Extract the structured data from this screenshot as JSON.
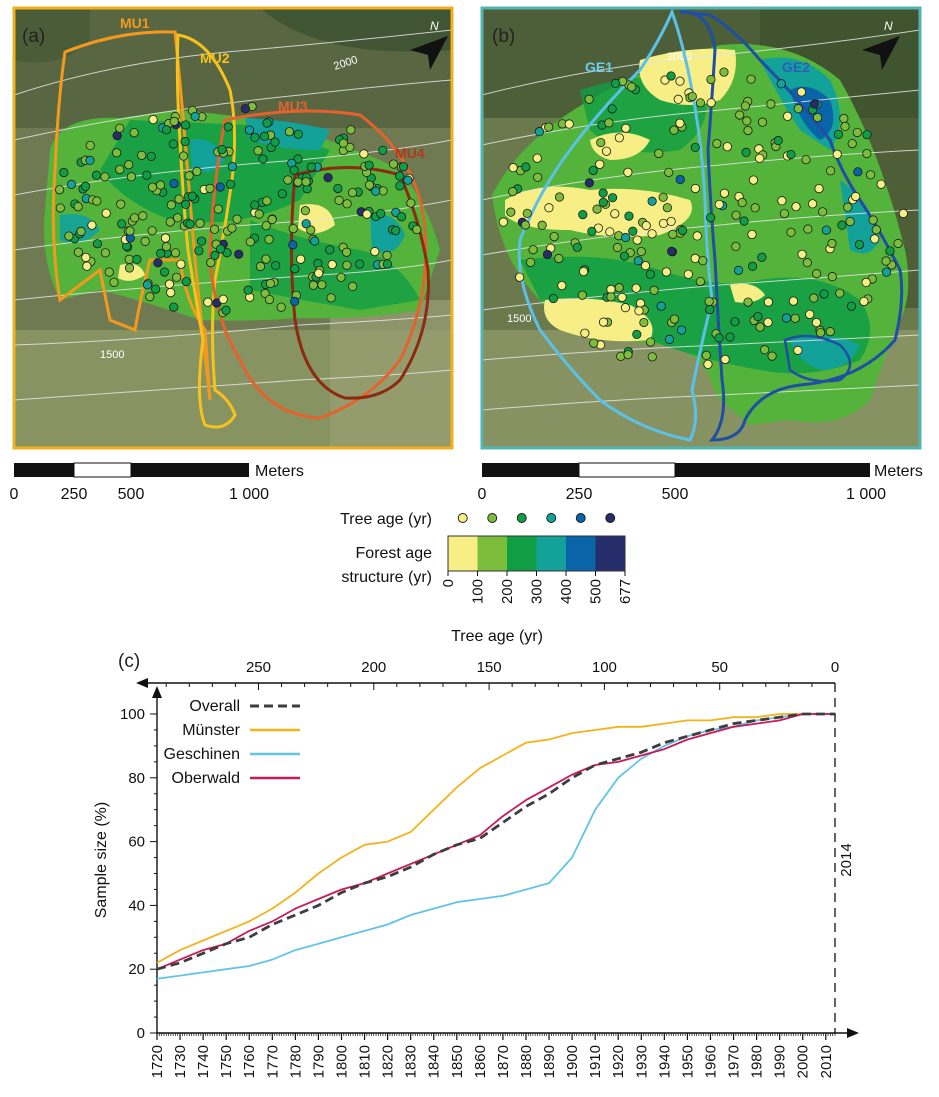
{
  "panels": {
    "a": {
      "label": "(a)",
      "units": [
        "MU1",
        "MU2",
        "MU3",
        "MU4"
      ],
      "unit_colors": [
        "#f39a1e",
        "#f7c21b",
        "#e4622d",
        "#8c2a12"
      ],
      "contours": [
        "2000",
        "1500"
      ],
      "frame_color": "#f2b01f"
    },
    "b": {
      "label": "(b)",
      "units": [
        "GE1",
        "GE2"
      ],
      "unit_colors": [
        "#5cc1e8",
        "#1f4fa3"
      ],
      "contours": [
        "2000",
        "1500"
      ],
      "frame_color": "#4fb6b4"
    }
  },
  "scale_bar": {
    "unit": "Meters",
    "ticks": [
      "0",
      "250",
      "500",
      "1 000"
    ]
  },
  "age_legend": {
    "tree_age_label": "Tree age (yr)",
    "structure_label_1": "Forest age",
    "structure_label_2": "structure (yr)",
    "bin_ticks": [
      "0",
      "100",
      "200",
      "300",
      "400",
      "500",
      "677"
    ],
    "bin_colors": [
      "#f7ee85",
      "#7cbd3b",
      "#109e45",
      "#12a29a",
      "#0a64a8",
      "#252d6b"
    ]
  },
  "chart_data": {
    "type": "line",
    "panel_label": "(c)",
    "xlabel_top": "Tree age (yr)",
    "ylabel": "Sample size (%)",
    "x_range": [
      1720,
      2014
    ],
    "ylim": [
      0,
      100
    ],
    "x_ticks": [
      "1720",
      "1730",
      "1740",
      "1750",
      "1760",
      "1770",
      "1780",
      "1790",
      "1800",
      "1810",
      "1820",
      "1830",
      "1840",
      "1850",
      "1860",
      "1870",
      "1880",
      "1890",
      "1900",
      "1910",
      "1920",
      "1930",
      "1940",
      "1950",
      "1960",
      "1970",
      "1980",
      "1990",
      "2000",
      "2010"
    ],
    "top_ticks": [
      "250",
      "200",
      "150",
      "100",
      "50",
      "0"
    ],
    "y_ticks": [
      "0",
      "20",
      "40",
      "60",
      "80",
      "100"
    ],
    "reference_line": {
      "x": 2014,
      "label": "2014"
    },
    "legend_placement": "top-left",
    "series": [
      {
        "name": "Overall",
        "color": "#3d3d3d",
        "dashed": true,
        "points": [
          [
            1720,
            20
          ],
          [
            1730,
            22
          ],
          [
            1740,
            25
          ],
          [
            1750,
            28
          ],
          [
            1760,
            30
          ],
          [
            1770,
            34
          ],
          [
            1780,
            37
          ],
          [
            1790,
            40
          ],
          [
            1800,
            44
          ],
          [
            1810,
            47
          ],
          [
            1820,
            49
          ],
          [
            1830,
            52
          ],
          [
            1840,
            56
          ],
          [
            1850,
            59
          ],
          [
            1860,
            61
          ],
          [
            1870,
            66
          ],
          [
            1880,
            71
          ],
          [
            1890,
            75
          ],
          [
            1900,
            80
          ],
          [
            1910,
            84
          ],
          [
            1920,
            86
          ],
          [
            1930,
            88
          ],
          [
            1940,
            91
          ],
          [
            1950,
            93
          ],
          [
            1960,
            95
          ],
          [
            1970,
            97
          ],
          [
            1980,
            98
          ],
          [
            1990,
            99
          ],
          [
            2000,
            100
          ],
          [
            2014,
            100
          ]
        ]
      },
      {
        "name": "Münster",
        "color": "#f4b31b",
        "dashed": false,
        "points": [
          [
            1720,
            22
          ],
          [
            1730,
            26
          ],
          [
            1740,
            29
          ],
          [
            1750,
            32
          ],
          [
            1760,
            35
          ],
          [
            1770,
            39
          ],
          [
            1780,
            44
          ],
          [
            1790,
            50
          ],
          [
            1800,
            55
          ],
          [
            1810,
            59
          ],
          [
            1820,
            60
          ],
          [
            1830,
            63
          ],
          [
            1840,
            70
          ],
          [
            1850,
            77
          ],
          [
            1860,
            83
          ],
          [
            1870,
            87
          ],
          [
            1880,
            91
          ],
          [
            1890,
            92
          ],
          [
            1900,
            94
          ],
          [
            1910,
            95
          ],
          [
            1920,
            96
          ],
          [
            1930,
            96
          ],
          [
            1940,
            97
          ],
          [
            1950,
            98
          ],
          [
            1960,
            98
          ],
          [
            1970,
            99
          ],
          [
            1980,
            99
          ],
          [
            1990,
            100
          ],
          [
            2000,
            100
          ],
          [
            2014,
            100
          ]
        ]
      },
      {
        "name": "Geschinen",
        "color": "#62c4e6",
        "dashed": false,
        "points": [
          [
            1720,
            17
          ],
          [
            1730,
            18
          ],
          [
            1740,
            19
          ],
          [
            1750,
            20
          ],
          [
            1760,
            21
          ],
          [
            1770,
            23
          ],
          [
            1780,
            26
          ],
          [
            1790,
            28
          ],
          [
            1800,
            30
          ],
          [
            1810,
            32
          ],
          [
            1820,
            34
          ],
          [
            1830,
            37
          ],
          [
            1840,
            39
          ],
          [
            1850,
            41
          ],
          [
            1860,
            42
          ],
          [
            1870,
            43
          ],
          [
            1880,
            45
          ],
          [
            1890,
            47
          ],
          [
            1900,
            55
          ],
          [
            1910,
            70
          ],
          [
            1920,
            80
          ],
          [
            1930,
            86
          ],
          [
            1940,
            90
          ],
          [
            1950,
            93
          ],
          [
            1960,
            95
          ],
          [
            1970,
            96
          ],
          [
            1980,
            98
          ],
          [
            1990,
            99
          ],
          [
            2000,
            100
          ],
          [
            2014,
            100
          ]
        ]
      },
      {
        "name": "Oberwald",
        "color": "#c8195a",
        "dashed": false,
        "points": [
          [
            1720,
            20
          ],
          [
            1730,
            23
          ],
          [
            1740,
            26
          ],
          [
            1750,
            28
          ],
          [
            1760,
            32
          ],
          [
            1770,
            35
          ],
          [
            1780,
            39
          ],
          [
            1790,
            42
          ],
          [
            1800,
            45
          ],
          [
            1810,
            47
          ],
          [
            1820,
            50
          ],
          [
            1830,
            53
          ],
          [
            1840,
            56
          ],
          [
            1850,
            59
          ],
          [
            1860,
            62
          ],
          [
            1870,
            68
          ],
          [
            1880,
            73
          ],
          [
            1890,
            77
          ],
          [
            1900,
            81
          ],
          [
            1910,
            84
          ],
          [
            1920,
            85
          ],
          [
            1930,
            87
          ],
          [
            1940,
            89
          ],
          [
            1950,
            92
          ],
          [
            1960,
            94
          ],
          [
            1970,
            96
          ],
          [
            1980,
            97
          ],
          [
            1990,
            98
          ],
          [
            2000,
            100
          ],
          [
            2014,
            100
          ]
        ]
      }
    ]
  }
}
